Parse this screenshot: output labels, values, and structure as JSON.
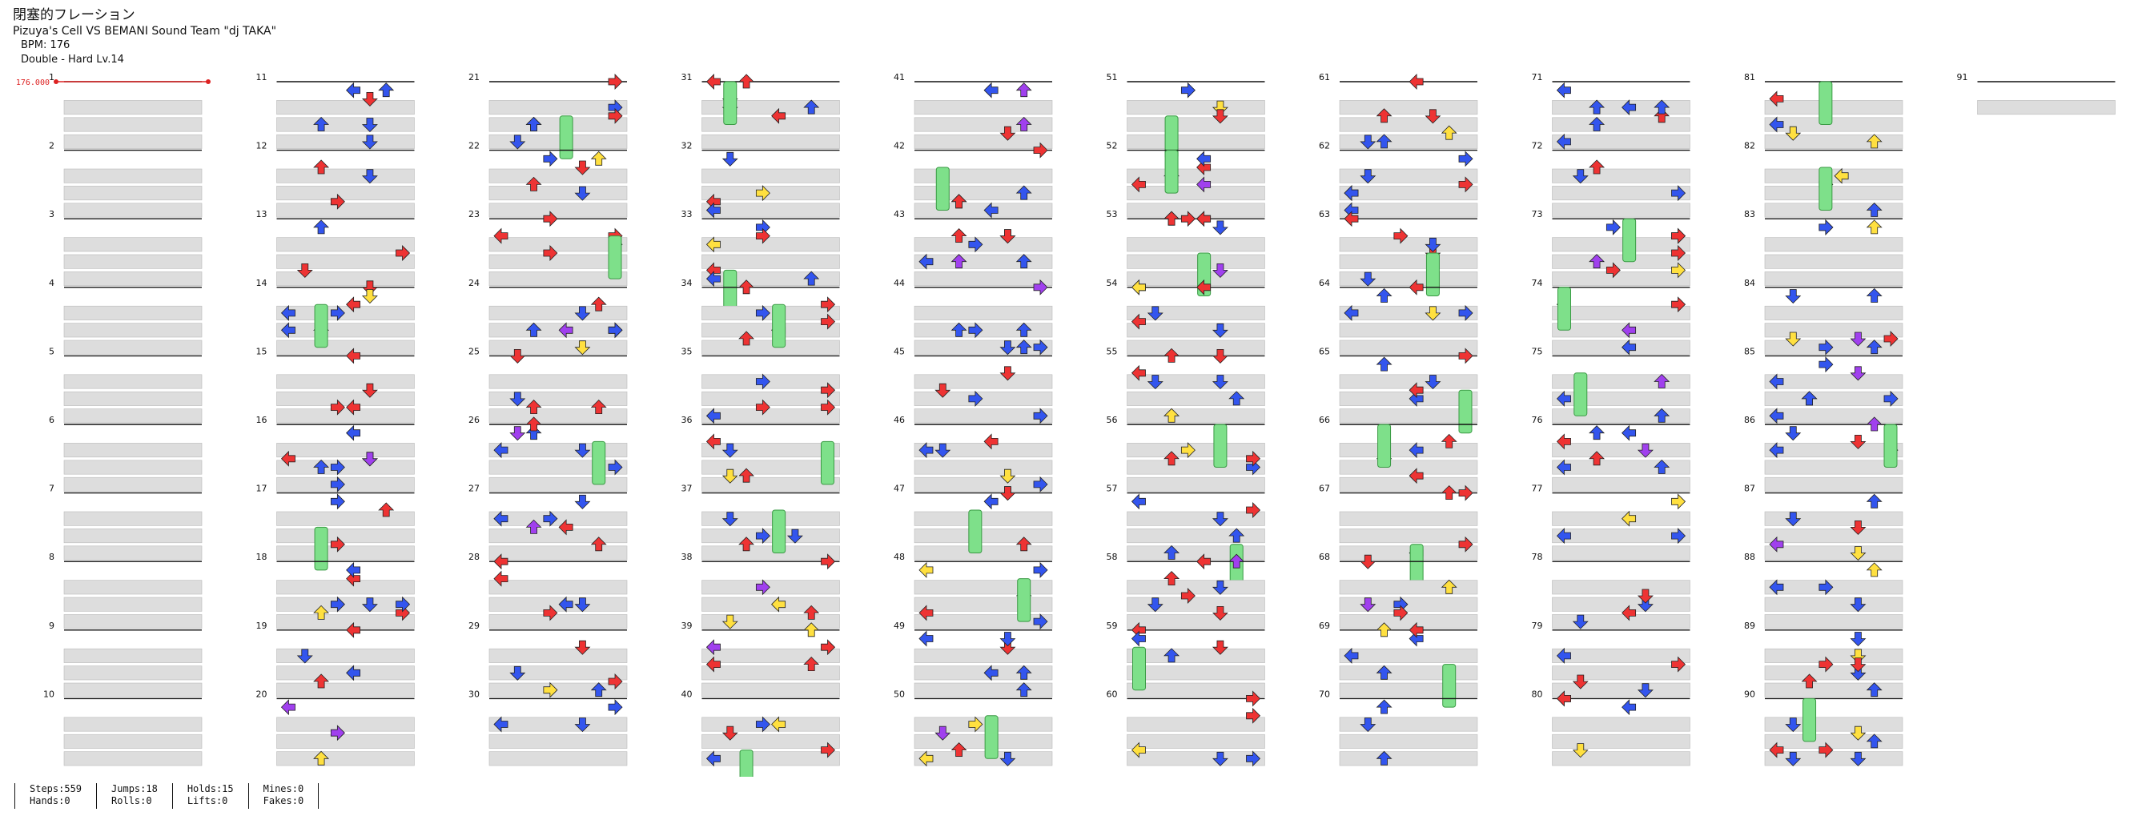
{
  "song": {
    "title": "閉塞的フレーション",
    "artist": "Pizuya's Cell VS BEMANI Sound Team \"dj TAKA\"",
    "bpm_label": "BPM: 176",
    "chart_label": "Double - Hard Lv.14"
  },
  "bpm_marker": {
    "label": "176.000",
    "color": "#dd2222"
  },
  "colors": {
    "red": "#ee3333",
    "blue": "#3355ee",
    "yellow": "#ffe040",
    "purple": "#a040ee",
    "hold": "#7ee08a"
  },
  "measures": {
    "first": 1,
    "last": 91,
    "per_column": 10,
    "rows_per_measure": 4
  },
  "stats": {
    "steps": "Steps:559",
    "jumps": "Jumps:18",
    "holds": "Holds:15",
    "mines": "Mines:0",
    "hands": "Hands:0",
    "rolls": "Rolls:0",
    "lifts": "Lifts:0",
    "fakes": "Fakes:0"
  }
}
